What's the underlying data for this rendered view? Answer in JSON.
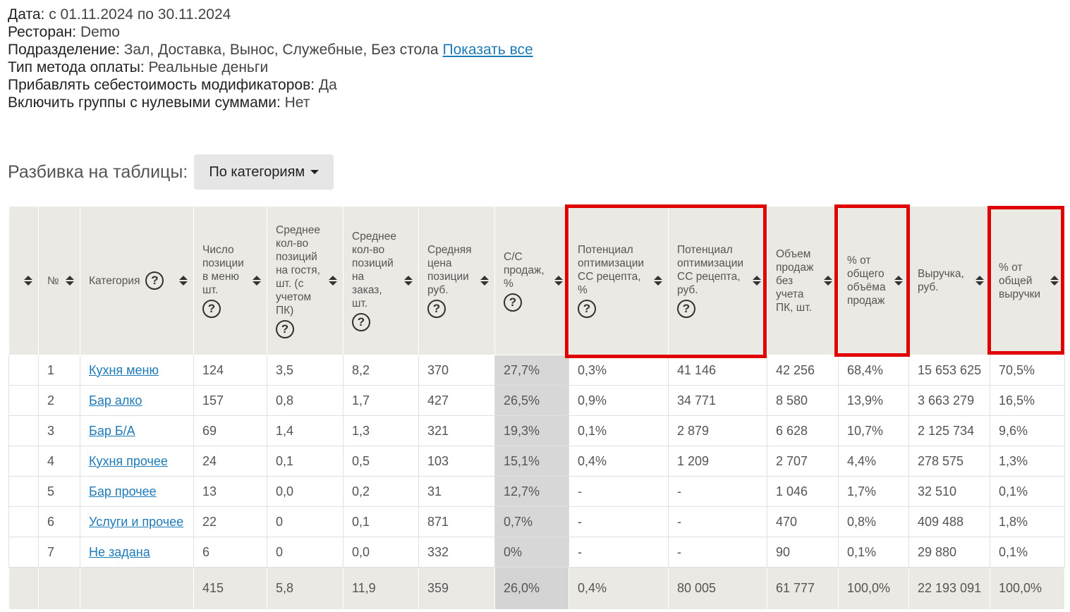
{
  "filters": {
    "date_label": "Дата:",
    "date_value": "с 01.11.2024 по 30.11.2024",
    "restaurant_label": "Ресторан:",
    "restaurant_value": "Demo",
    "division_label": "Подразделение:",
    "division_value": "Зал, Доставка, Вынос, Служебные, Без стола",
    "show_all_link": "Показать все",
    "payment_label": "Тип метода оплаты:",
    "payment_value": "Реальные деньги",
    "modifiers_label": "Прибавлять себестоимость модификаторов:",
    "modifiers_value": "Да",
    "zero_groups_label": "Включить группы с нулевыми суммами:",
    "zero_groups_value": "Нет"
  },
  "split": {
    "label": "Разбивка на таблицы:",
    "button": "По категориям"
  },
  "columns": [
    "",
    "№",
    "Категория",
    "Число позиции в меню шт.",
    "Среднее кол-во позиций на гостя, шт. (с учетом ПК)",
    "Среднее кол-во позиций на заказ, шт.",
    "Средняя цена позиции руб.",
    "С/С продаж, %",
    "Потенциал оптимизации СС рецепта, %",
    "Потенциал оптимизации СС рецепта, руб.",
    "Объем продаж без учета ПК, шт.",
    "% от общего объёма продаж",
    "Выручка, руб.",
    "% от общей выручки"
  ],
  "rows": [
    {
      "n": "1",
      "category": "Кухня меню",
      "menu_count": "124",
      "avg_guest": "3,5",
      "avg_order": "8,2",
      "avg_price": "370",
      "cost_pct": "27,7%",
      "opt_pct": "0,3%",
      "opt_rub": "41 146",
      "volume": "42 256",
      "volume_pct": "68,4%",
      "revenue": "15 653 625",
      "revenue_pct": "70,5%"
    },
    {
      "n": "2",
      "category": "Бар алко",
      "menu_count": "157",
      "avg_guest": "0,8",
      "avg_order": "1,7",
      "avg_price": "427",
      "cost_pct": "26,5%",
      "opt_pct": "0,9%",
      "opt_rub": "34 771",
      "volume": "8 580",
      "volume_pct": "13,9%",
      "revenue": "3 663 279",
      "revenue_pct": "16,5%"
    },
    {
      "n": "3",
      "category": "Бар Б/А",
      "menu_count": "69",
      "avg_guest": "1,4",
      "avg_order": "1,3",
      "avg_price": "321",
      "cost_pct": "19,3%",
      "opt_pct": "0,1%",
      "opt_rub": "2 879",
      "volume": "6 628",
      "volume_pct": "10,7%",
      "revenue": "2 125 734",
      "revenue_pct": "9,6%"
    },
    {
      "n": "4",
      "category": "Кухня прочее",
      "menu_count": "24",
      "avg_guest": "0,1",
      "avg_order": "0,5",
      "avg_price": "103",
      "cost_pct": "15,1%",
      "opt_pct": "0,4%",
      "opt_rub": "1 209",
      "volume": "2 707",
      "volume_pct": "4,4%",
      "revenue": "278 575",
      "revenue_pct": "1,3%"
    },
    {
      "n": "5",
      "category": "Бар прочее",
      "menu_count": "13",
      "avg_guest": "0,0",
      "avg_order": "0,2",
      "avg_price": "31",
      "cost_pct": "12,7%",
      "opt_pct": "-",
      "opt_rub": "-",
      "volume": "1 046",
      "volume_pct": "1,7%",
      "revenue": "32 510",
      "revenue_pct": "0,1%"
    },
    {
      "n": "6",
      "category": "Услуги и прочее",
      "menu_count": "22",
      "avg_guest": "0",
      "avg_order": "0,1",
      "avg_price": "871",
      "cost_pct": "0,7%",
      "opt_pct": "-",
      "opt_rub": "-",
      "volume": "470",
      "volume_pct": "0,8%",
      "revenue": "409 488",
      "revenue_pct": "1,8%"
    },
    {
      "n": "7",
      "category": "Не задана",
      "menu_count": "6",
      "avg_guest": "0",
      "avg_order": "0,0",
      "avg_price": "332",
      "cost_pct": "0%",
      "opt_pct": "-",
      "opt_rub": "-",
      "volume": "90",
      "volume_pct": "0,1%",
      "revenue": "29 880",
      "revenue_pct": "0,1%"
    }
  ],
  "totals": {
    "menu_count": "415",
    "avg_guest": "5,8",
    "avg_order": "11,9",
    "avg_price": "359",
    "cost_pct": "26,0%",
    "opt_pct": "0,4%",
    "opt_rub": "80 005",
    "volume": "61 777",
    "volume_pct": "100,0%",
    "revenue": "22 193 091",
    "revenue_pct": "100,0%"
  },
  "help_glyph": "?",
  "colors": {
    "highlight": "#e00000",
    "header_bg": "#ebe9e4",
    "cost_col_bg": "#d7d7d7",
    "link": "#1f7ab8"
  }
}
